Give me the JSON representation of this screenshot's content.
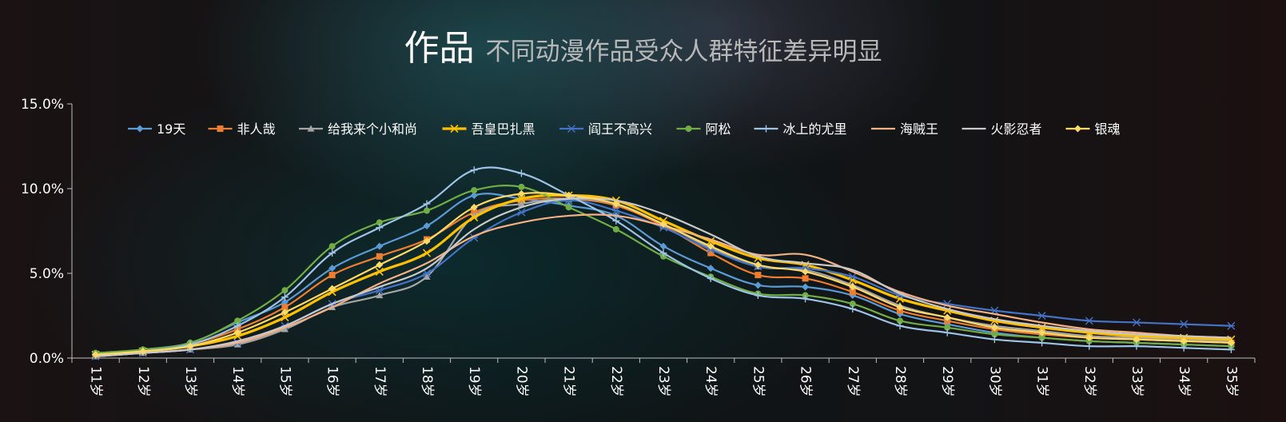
{
  "header": {
    "title": "作品",
    "subtitle": "不同动漫作品受众人群特征差异明显"
  },
  "chart_data": {
    "type": "line",
    "title": "作品",
    "subtitle": "不同动漫作品受众人群特征差异明显",
    "xlabel": "",
    "ylabel": "",
    "ylim": [
      0,
      15
    ],
    "yticks": [
      "0.0%",
      "5.0%",
      "10.0%",
      "15.0%"
    ],
    "y_unit": "%",
    "grid": false,
    "legend_position": "top",
    "categories": [
      "11岁",
      "12岁",
      "13岁",
      "14岁",
      "15岁",
      "16岁",
      "17岁",
      "18岁",
      "19岁",
      "20岁",
      "21岁",
      "22岁",
      "23岁",
      "24岁",
      "25岁",
      "26岁",
      "27岁",
      "28岁",
      "29岁",
      "30岁",
      "31岁",
      "32岁",
      "33岁",
      "34岁",
      "35岁"
    ],
    "series": [
      {
        "name": "19天",
        "color": "#5b9bd5",
        "marker": "diamond",
        "values": [
          0.2,
          0.5,
          0.9,
          2.1,
          3.3,
          5.3,
          6.6,
          7.8,
          9.6,
          9.4,
          9.0,
          8.4,
          6.6,
          5.3,
          4.3,
          4.2,
          3.7,
          2.6,
          2.0,
          1.5,
          1.2,
          1.0,
          0.9,
          0.8,
          0.7
        ]
      },
      {
        "name": "非人哉",
        "color": "#ed7d31",
        "marker": "square",
        "values": [
          0.2,
          0.4,
          0.8,
          1.7,
          3.0,
          4.9,
          6.0,
          7.0,
          8.6,
          9.3,
          9.4,
          9.0,
          7.8,
          6.2,
          4.9,
          4.7,
          3.9,
          2.8,
          2.2,
          1.7,
          1.4,
          1.2,
          1.1,
          1.0,
          0.9
        ]
      },
      {
        "name": "给我来个小和尚",
        "color": "#a5a5a5",
        "marker": "triangle",
        "values": [
          0.1,
          0.3,
          0.5,
          0.8,
          1.7,
          3.0,
          3.7,
          4.8,
          8.4,
          9.1,
          9.4,
          9.1,
          7.9,
          6.5,
          5.4,
          5.2,
          4.3,
          3.1,
          2.4,
          1.9,
          1.6,
          1.3,
          1.2,
          1.1,
          1.0
        ]
      },
      {
        "name": "吾皇巴扎黑",
        "color": "#ffc000",
        "marker": "x",
        "values": [
          0.2,
          0.4,
          0.7,
          1.3,
          2.4,
          3.9,
          5.1,
          6.2,
          8.3,
          9.4,
          9.6,
          9.3,
          8.1,
          6.9,
          5.9,
          5.5,
          4.6,
          3.5,
          2.8,
          2.2,
          1.8,
          1.5,
          1.3,
          1.2,
          1.1
        ]
      },
      {
        "name": "阎王不高兴",
        "color": "#4472c4",
        "marker": "star",
        "values": [
          0.1,
          0.3,
          0.5,
          0.9,
          1.9,
          3.2,
          4.0,
          5.0,
          7.1,
          8.6,
          9.3,
          8.7,
          7.7,
          6.4,
          5.4,
          5.3,
          4.8,
          3.7,
          3.2,
          2.8,
          2.5,
          2.2,
          2.1,
          2.0,
          1.9
        ]
      },
      {
        "name": "阿松",
        "color": "#70ad47",
        "marker": "circle",
        "values": [
          0.3,
          0.5,
          0.9,
          2.2,
          4.0,
          6.6,
          8.0,
          8.7,
          9.9,
          10.1,
          8.9,
          7.6,
          6.0,
          4.8,
          3.8,
          3.7,
          3.2,
          2.2,
          1.8,
          1.4,
          1.2,
          1.0,
          0.9,
          0.8,
          0.7
        ]
      },
      {
        "name": "冰上的尤里",
        "color": "#9dc3e6",
        "marker": "plus",
        "values": [
          0.2,
          0.4,
          0.8,
          1.9,
          3.6,
          6.2,
          7.7,
          9.1,
          11.1,
          10.9,
          9.6,
          8.1,
          6.2,
          4.7,
          3.7,
          3.5,
          2.9,
          1.9,
          1.5,
          1.1,
          0.9,
          0.7,
          0.7,
          0.6,
          0.5
        ]
      },
      {
        "name": "海贼王",
        "color": "#f4b183",
        "marker": "none",
        "values": [
          0.1,
          0.3,
          0.5,
          0.9,
          1.8,
          3.0,
          4.4,
          5.6,
          7.2,
          8.0,
          8.4,
          8.4,
          7.8,
          7.0,
          6.1,
          6.1,
          5.1,
          3.9,
          3.1,
          2.6,
          2.1,
          1.7,
          1.5,
          1.3,
          1.2
        ]
      },
      {
        "name": "火影忍者",
        "color": "#c9c9c9",
        "marker": "none",
        "values": [
          0.1,
          0.3,
          0.5,
          1.0,
          1.9,
          3.2,
          4.2,
          5.3,
          7.6,
          8.9,
          9.4,
          9.3,
          8.5,
          7.3,
          6.0,
          5.6,
          5.2,
          3.8,
          2.9,
          2.3,
          1.9,
          1.6,
          1.4,
          1.3,
          1.2
        ]
      },
      {
        "name": "银魂",
        "color": "#ffd966",
        "marker": "diamond",
        "values": [
          0.2,
          0.4,
          0.7,
          1.5,
          2.7,
          4.1,
          5.5,
          6.9,
          8.9,
          9.7,
          9.6,
          9.1,
          7.9,
          6.6,
          5.5,
          5.1,
          4.2,
          3.0,
          2.4,
          1.8,
          1.5,
          1.2,
          1.1,
          1.0,
          0.9
        ]
      }
    ]
  }
}
